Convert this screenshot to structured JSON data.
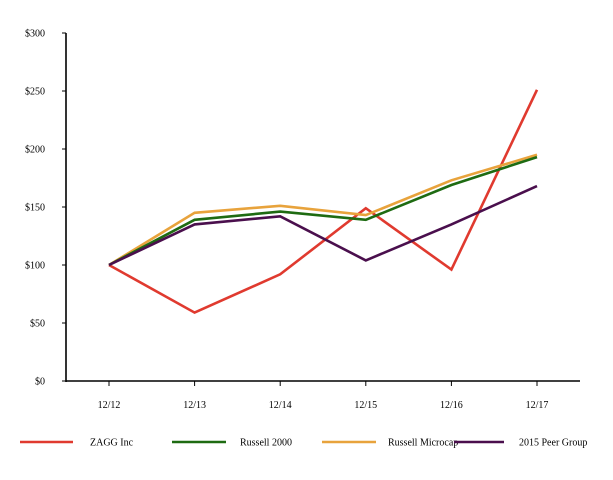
{
  "chart_data": {
    "type": "line",
    "title": "",
    "xlabel": "",
    "ylabel": "",
    "categories": [
      "12/12",
      "12/13",
      "12/14",
      "12/15",
      "12/16",
      "12/17"
    ],
    "y_ticks": [
      0,
      50,
      100,
      150,
      200,
      250,
      300
    ],
    "y_tick_labels": [
      "$0",
      "$50",
      "$100",
      "$150",
      "$200",
      "$250",
      "$300"
    ],
    "ylim": [
      0,
      300
    ],
    "grid": false,
    "legend_position": "bottom",
    "series": [
      {
        "name": "ZAGG Inc",
        "color": "#e03a2f",
        "values": [
          100,
          59,
          92,
          149,
          96,
          251
        ]
      },
      {
        "name": "Russell 2000",
        "color": "#1e6b12",
        "values": [
          100,
          139,
          146,
          139,
          169,
          193
        ]
      },
      {
        "name": "Russell Microcap",
        "color": "#e8a33c",
        "values": [
          100,
          145,
          151,
          143,
          173,
          195
        ]
      },
      {
        "name": "2015 Peer Group",
        "color": "#4a0f4d",
        "values": [
          100,
          135,
          142,
          104,
          135,
          168
        ]
      }
    ]
  }
}
